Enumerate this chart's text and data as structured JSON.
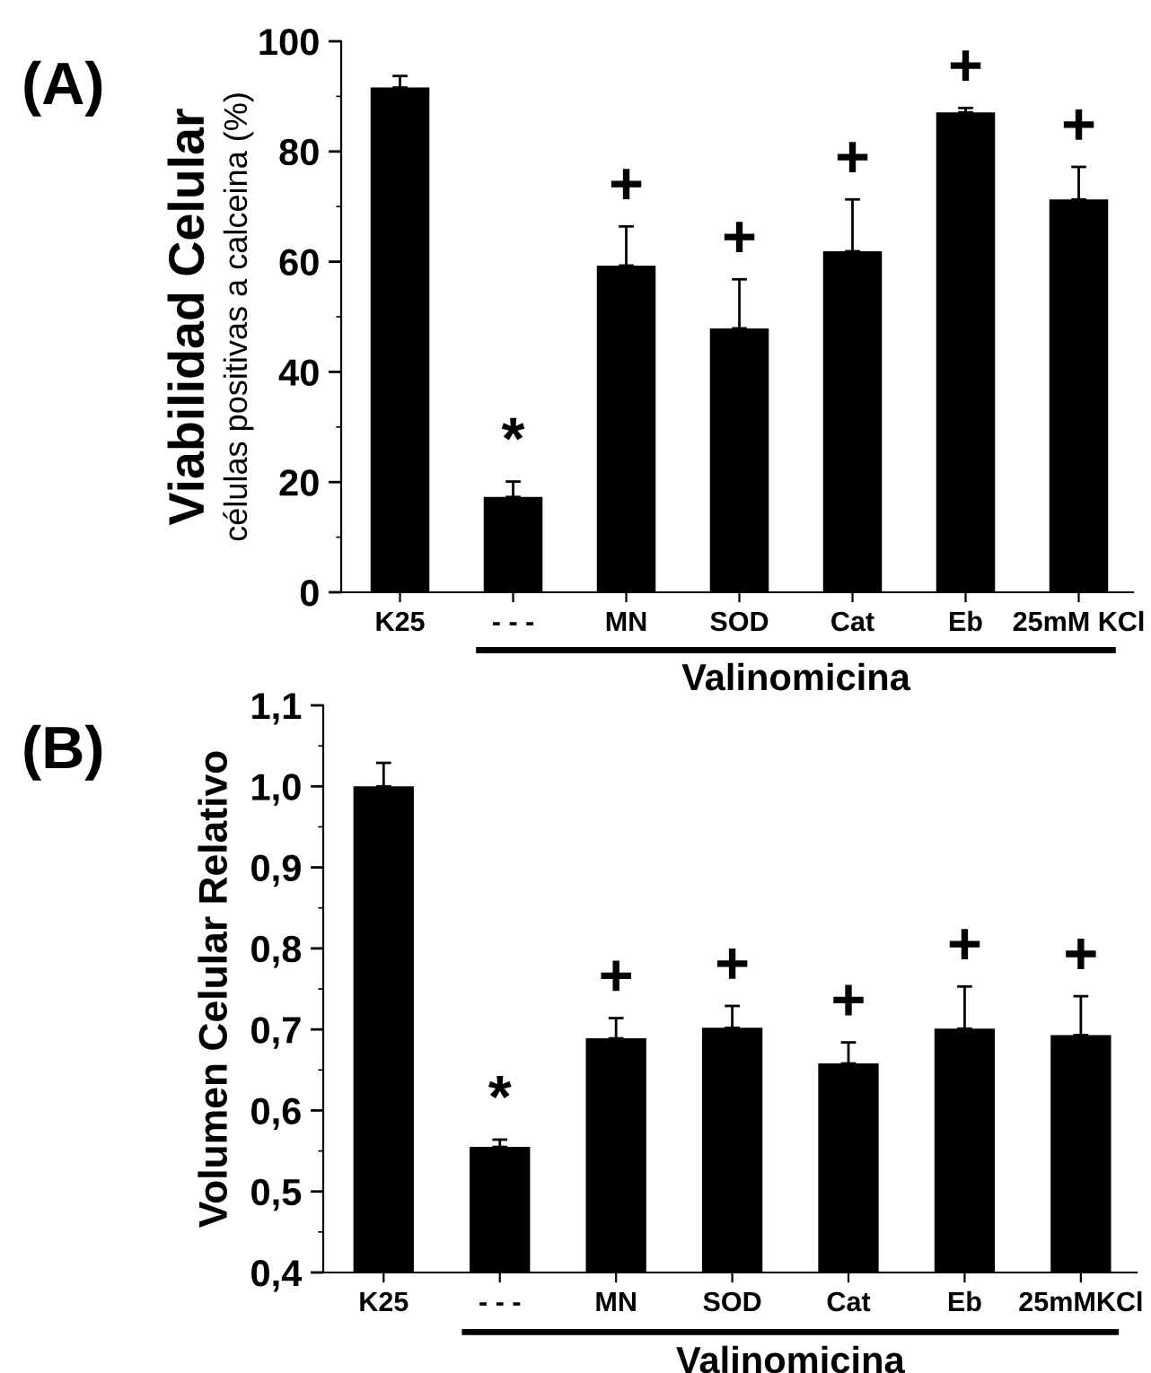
{
  "chart_data": [
    {
      "type": "bar",
      "title": "(A)",
      "ylabel": "Viabilidad Celular\ncélulas positivas a calceina (%)",
      "xlabel": "Valinomicina",
      "categories": [
        "K25",
        "- - -",
        "MN",
        "SOD",
        "Cat",
        "Eb",
        "25mM KCl"
      ],
      "values": [
        91.6,
        17.3,
        59.3,
        47.9,
        61.9,
        87.1,
        71.3
      ],
      "errors": [
        2.1,
        2.8,
        7.1,
        8.9,
        9.4,
        0.8,
        5.9
      ],
      "color": "#000000",
      "ylim": [
        0,
        100
      ],
      "yticks": [
        0,
        20,
        40,
        60,
        80,
        100
      ],
      "annotations": [
        "*",
        "+",
        "+",
        "+",
        "+",
        "+"
      ]
    },
    {
      "type": "bar",
      "title": "(B)",
      "ylabel": "Volumen Celular Relativo",
      "xlabel": "Valinomicina",
      "categories": [
        "K25",
        "- - -",
        "MN",
        "SOD",
        "Cat",
        "Eb",
        "25mMKCl"
      ],
      "values": [
        1.0,
        0.555,
        0.689,
        0.702,
        0.658,
        0.701,
        0.693
      ],
      "errors": [
        0.029,
        0.009,
        0.025,
        0.027,
        0.026,
        0.052,
        0.048
      ],
      "color": "#000000",
      "ylim": [
        0.4,
        1.1
      ],
      "yticks": [
        {
          "value": 0.4,
          "label": "0,4"
        },
        {
          "value": 0.5,
          "label": "0,5"
        },
        {
          "value": 0.6,
          "label": "0,6"
        },
        {
          "value": 0.7,
          "label": "0,7"
        },
        {
          "value": 0.8,
          "label": "0,8"
        },
        {
          "value": 0.9,
          "label": "0,9"
        },
        {
          "value": 1.0,
          "label": "1,0"
        },
        {
          "value": 1.1,
          "label": "1,1"
        }
      ],
      "annotations": [
        "*",
        "+",
        "+",
        "+",
        "+",
        "+"
      ]
    }
  ]
}
